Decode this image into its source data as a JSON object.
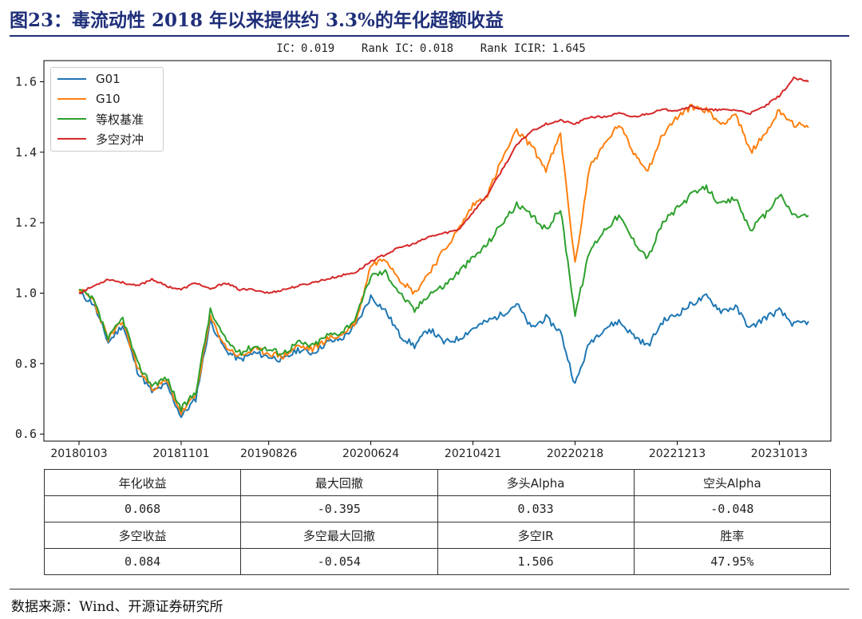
{
  "figure_title": "图23：毒流动性 2018 年以来提供约 3.3%的年化超额收益",
  "stats_line": "IC：0.019    Rank IC：0.018    Rank ICIR：1.645",
  "source": "数据来源：Wind、开源证券研究所",
  "colors": {
    "G01": "#1f77b4",
    "G10": "#ff7f0e",
    "benchmark": "#2ca02c",
    "hedge": "#d62728",
    "title": "#1f2f7a"
  },
  "table": {
    "row1_headers": [
      "年化收益",
      "最大回撤",
      "多头Alpha",
      "空头Alpha"
    ],
    "row1_values": [
      "0.068",
      "-0.395",
      "0.033",
      "-0.048"
    ],
    "row2_headers": [
      "多空收益",
      "多空最大回撤",
      "多空IR",
      "胜率"
    ],
    "row2_values": [
      "0.084",
      "-0.054",
      "1.506",
      "47.95%"
    ]
  },
  "chart_data": {
    "type": "line",
    "title": "IC：0.019    Rank IC：0.018    Rank ICIR：1.645",
    "xlabel": "",
    "ylabel": "",
    "ylim": [
      0.58,
      1.66
    ],
    "yticks": [
      0.6,
      0.8,
      1.0,
      1.2,
      1.4,
      1.6
    ],
    "xticks": [
      "20180103",
      "20181101",
      "20190826",
      "20200624",
      "20210421",
      "20220218",
      "20221213",
      "20231013"
    ],
    "legend_position": "top-left",
    "grid": false,
    "x": [
      "20180103",
      "2018-02",
      "2018-03",
      "2018-05",
      "2018-06",
      "2018-08",
      "2018-09",
      "20181101",
      "2019-01",
      "2019-02",
      "2019-04",
      "2019-05",
      "2019-07",
      "20190826",
      "2019-10",
      "2019-12",
      "2020-01",
      "2020-03",
      "2020-04",
      "2020-05",
      "20200624",
      "2020-07",
      "2020-09",
      "2020-11",
      "2020-12",
      "2021-02",
      "2021-03",
      "20210421",
      "2021-06",
      "2021-07",
      "2021-09",
      "2021-10",
      "2021-12",
      "2022-01",
      "20220218",
      "2022-04",
      "2022-05",
      "2022-07",
      "2022-09",
      "2022-10",
      "2022-11",
      "20221213",
      "2023-01",
      "2023-03",
      "2023-04",
      "2023-06",
      "2023-07",
      "2023-09",
      "20231013",
      "2023-11",
      "2023-12"
    ],
    "series": [
      {
        "name": "G01",
        "values": [
          1.0,
          0.97,
          0.86,
          0.91,
          0.78,
          0.72,
          0.74,
          0.65,
          0.7,
          0.92,
          0.84,
          0.81,
          0.83,
          0.82,
          0.81,
          0.84,
          0.83,
          0.86,
          0.87,
          0.91,
          0.99,
          0.95,
          0.88,
          0.85,
          0.9,
          0.86,
          0.87,
          0.9,
          0.92,
          0.94,
          0.97,
          0.9,
          0.93,
          0.89,
          0.74,
          0.86,
          0.9,
          0.92,
          0.88,
          0.85,
          0.92,
          0.94,
          0.97,
          0.99,
          0.95,
          0.96,
          0.9,
          0.93,
          0.95,
          0.91,
          0.92
        ]
      },
      {
        "name": "G10",
        "values": [
          1.01,
          0.98,
          0.87,
          0.92,
          0.79,
          0.73,
          0.75,
          0.66,
          0.71,
          0.93,
          0.85,
          0.82,
          0.84,
          0.83,
          0.82,
          0.85,
          0.84,
          0.87,
          0.88,
          0.92,
          1.08,
          1.1,
          1.04,
          1.0,
          1.06,
          1.12,
          1.18,
          1.25,
          1.28,
          1.38,
          1.46,
          1.42,
          1.35,
          1.45,
          1.08,
          1.36,
          1.42,
          1.48,
          1.4,
          1.35,
          1.45,
          1.5,
          1.53,
          1.52,
          1.48,
          1.51,
          1.4,
          1.45,
          1.52,
          1.48,
          1.47
        ]
      },
      {
        "name": "等权基准",
        "values": [
          1.01,
          0.98,
          0.87,
          0.93,
          0.8,
          0.74,
          0.76,
          0.67,
          0.72,
          0.95,
          0.87,
          0.83,
          0.85,
          0.84,
          0.83,
          0.86,
          0.85,
          0.88,
          0.89,
          0.93,
          1.05,
          1.06,
          1.0,
          0.95,
          1.0,
          1.02,
          1.06,
          1.1,
          1.14,
          1.2,
          1.25,
          1.22,
          1.18,
          1.24,
          0.94,
          1.12,
          1.18,
          1.22,
          1.15,
          1.1,
          1.2,
          1.24,
          1.28,
          1.3,
          1.25,
          1.27,
          1.18,
          1.22,
          1.28,
          1.22,
          1.22
        ]
      },
      {
        "name": "多空对冲",
        "values": [
          1.0,
          1.02,
          1.04,
          1.03,
          1.02,
          1.04,
          1.02,
          1.01,
          1.03,
          1.01,
          1.03,
          1.01,
          1.01,
          1.0,
          1.01,
          1.02,
          1.03,
          1.04,
          1.05,
          1.06,
          1.09,
          1.11,
          1.13,
          1.14,
          1.16,
          1.17,
          1.18,
          1.23,
          1.28,
          1.35,
          1.42,
          1.46,
          1.48,
          1.49,
          1.48,
          1.5,
          1.5,
          1.51,
          1.5,
          1.51,
          1.52,
          1.52,
          1.53,
          1.52,
          1.52,
          1.52,
          1.51,
          1.53,
          1.56,
          1.61,
          1.6
        ]
      }
    ]
  }
}
